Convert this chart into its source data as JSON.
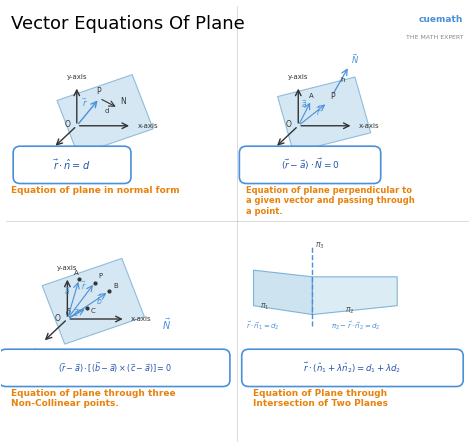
{
  "title": "Vector Equations Of Plane",
  "title_fontsize": 13,
  "title_color": "#000000",
  "bg_color": "#ffffff",
  "blue_plane": "#b8d8ea",
  "vec_color": "#4a90d9",
  "orange_color": "#e8820c",
  "dark_blue": "#2255aa",
  "axis_color": "#333333",
  "diagram1_label": "Equation of plane in normal form",
  "diagram2_label": "Equation of plane perpendicular to\na given vector and passing through\na point.",
  "diagram3_label": "Equation of plane through three\nNon-Collinear points.",
  "diagram4_label": "Equation of Plane through\nIntersection of Two Planes"
}
